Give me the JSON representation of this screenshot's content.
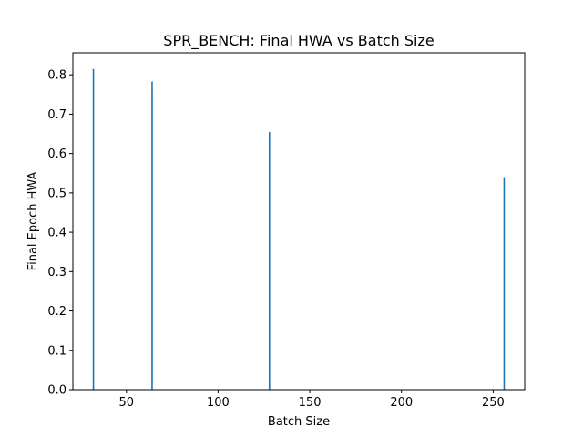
{
  "chart_data": {
    "type": "bar",
    "title": "SPR_BENCH: Final HWA vs Batch Size",
    "xlabel": "Batch Size",
    "ylabel": "Final Epoch HWA",
    "x": [
      32,
      64,
      128,
      256
    ],
    "values": [
      0.815,
      0.783,
      0.655,
      0.54
    ],
    "xlim": [
      20.8,
      267.2
    ],
    "ylim": [
      0,
      0.856
    ],
    "xticks": [
      50,
      100,
      150,
      200,
      250
    ],
    "xtick_labels": [
      "50",
      "100",
      "150",
      "200",
      "250"
    ],
    "yticks": [
      0.0,
      0.1,
      0.2,
      0.3,
      0.4,
      0.5,
      0.6,
      0.7,
      0.8
    ],
    "ytick_labels": [
      "0.0",
      "0.1",
      "0.2",
      "0.3",
      "0.4",
      "0.5",
      "0.6",
      "0.7",
      "0.8"
    ],
    "bar_width": 0.8,
    "bar_color": "#1f77b4",
    "grid": false,
    "legend": "none"
  }
}
